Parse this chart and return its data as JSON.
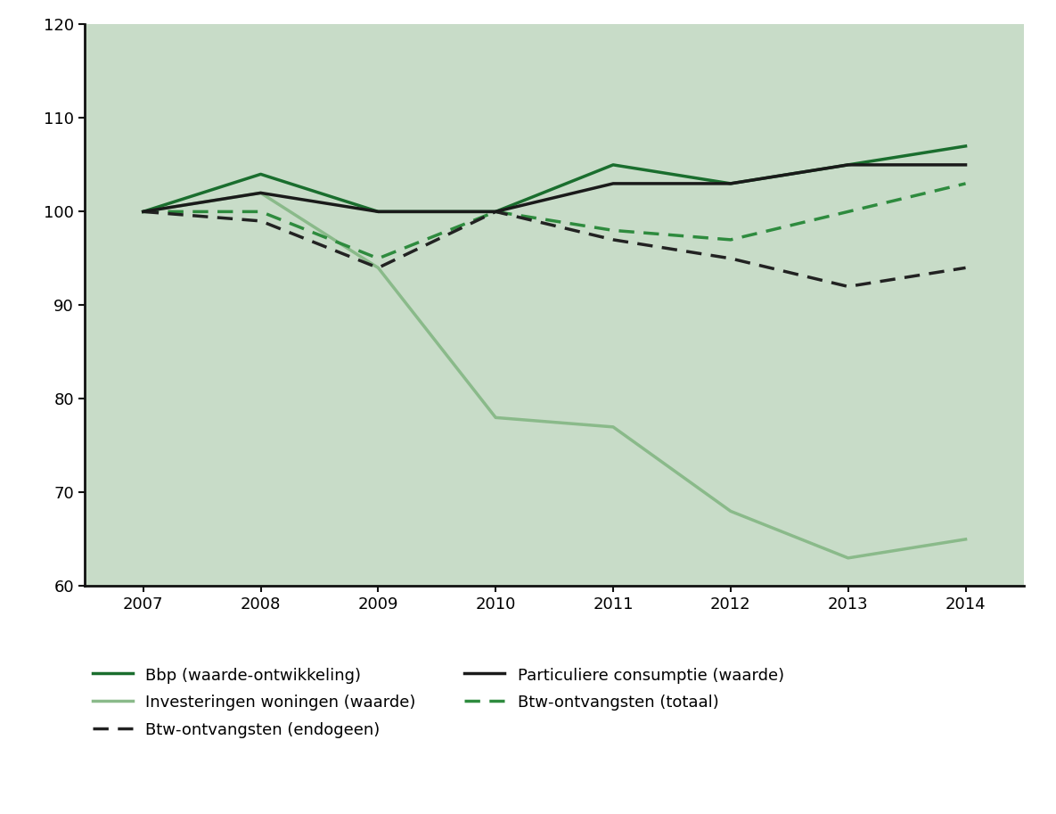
{
  "years": [
    2007,
    2008,
    2009,
    2010,
    2011,
    2012,
    2013,
    2014
  ],
  "bbp": [
    100,
    104,
    100,
    100,
    105,
    103,
    105,
    107
  ],
  "investeringen_woningen": [
    100,
    102,
    94,
    78,
    77,
    68,
    63,
    65
  ],
  "particuliere_consumptie": [
    100,
    102,
    100,
    100,
    103,
    103,
    105,
    105
  ],
  "btw_totaal": [
    100,
    100,
    95,
    100,
    98,
    97,
    100,
    103
  ],
  "btw_endogeen": [
    100,
    99,
    94,
    100,
    97,
    95,
    92,
    94
  ],
  "colors": {
    "bbp": "#1a6e2e",
    "investeringen_woningen": "#8aba8a",
    "particuliere_consumptie": "#1a1a1a",
    "btw_totaal": "#2e8b3e",
    "btw_endogeen": "#222222"
  },
  "background_color": "#c8dcc8",
  "ylim": [
    60,
    120
  ],
  "yticks": [
    60,
    70,
    80,
    90,
    100,
    110,
    120
  ],
  "legend_col1": [
    {
      "label": "Bbp (waarde-ontwikkeling)",
      "color": "#1a6e2e",
      "linestyle": "solid",
      "lw": 2.5
    },
    {
      "label": "Investeringen woningen (waarde)",
      "color": "#8aba8a",
      "linestyle": "solid",
      "lw": 2.5
    },
    {
      "label": "Btw-ontvangsten (endogeen)",
      "color": "#222222",
      "linestyle": "dashed",
      "lw": 2.5
    }
  ],
  "legend_col2": [
    {
      "label": "Particuliere consumptie (waarde)",
      "color": "#1a1a1a",
      "linestyle": "solid",
      "lw": 2.5
    },
    {
      "label": "Btw-ontvangsten (totaal)",
      "color": "#2e8b3e",
      "linestyle": "dashed",
      "lw": 2.5
    }
  ]
}
